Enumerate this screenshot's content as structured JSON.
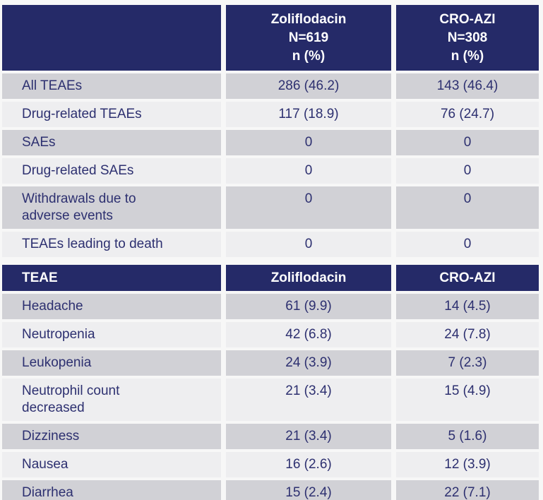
{
  "colors": {
    "header_bg": "#252a68",
    "header_text": "#ffffff",
    "row_gray": "#d1d1d6",
    "row_light": "#eeeef0",
    "body_text": "#2d3070",
    "page_bg": "#f7f7f7"
  },
  "safety_summary_table": {
    "header": {
      "col_label": "",
      "col_zoliflodacin": "Zoliflodacin\nN=619\nn (%)",
      "col_cro_azi": "CRO-AZI\nN=308\nn (%)"
    },
    "rows": [
      [
        "All TEAEs",
        "286 (46.2)",
        "143 (46.4)"
      ],
      [
        "Drug-related TEAEs",
        "117 (18.9)",
        "76 (24.7)"
      ],
      [
        "SAEs",
        "0",
        "0"
      ],
      [
        "Drug-related SAEs",
        "0",
        "0"
      ],
      [
        "Withdrawals due to\nadverse events",
        "0",
        "0"
      ],
      [
        "TEAEs leading to death",
        "0",
        "0"
      ]
    ]
  },
  "teae_by_type_table": {
    "header": {
      "col_label": "TEAE",
      "col_zoliflodacin": "Zoliflodacin",
      "col_cro_azi": "CRO-AZI"
    },
    "rows": [
      [
        "Headache",
        "61 (9.9)",
        "14 (4.5)"
      ],
      [
        "Neutropenia",
        "42 (6.8)",
        "24 (7.8)"
      ],
      [
        "Leukopenia",
        "24 (3.9)",
        "7 (2.3)"
      ],
      [
        "Neutrophil count\ndecreased",
        "21 (3.4)",
        "15 (4.9)"
      ],
      [
        "Dizziness",
        "21 (3.4)",
        "5 (1.6)"
      ],
      [
        "Nausea",
        "16 (2.6)",
        "12 (3.9)"
      ],
      [
        "Diarrhea",
        "15 (2.4)",
        "22 (7.1)"
      ]
    ]
  }
}
